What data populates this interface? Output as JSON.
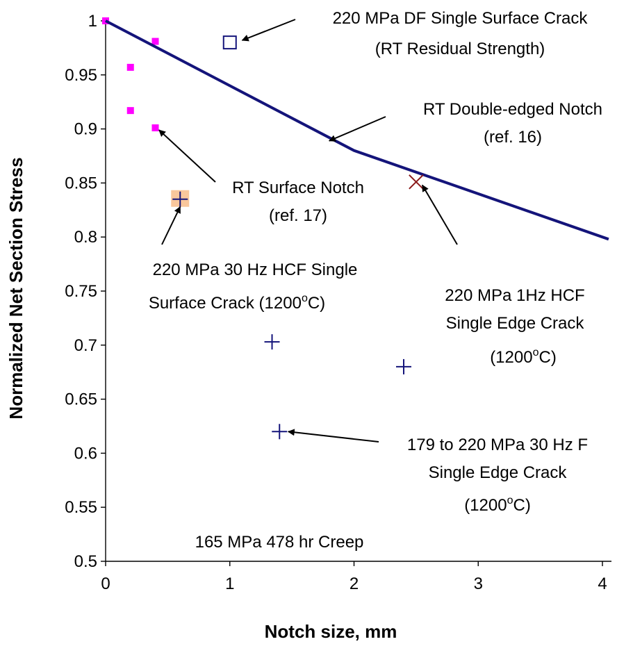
{
  "chart_data": {
    "type": "scatter",
    "xlabel": "Notch size, mm",
    "ylabel": "Normalized Net Section Stress",
    "xlim": [
      0,
      4.05
    ],
    "ylim": [
      0.5,
      1.0
    ],
    "x_ticks": [
      "0",
      "1",
      "2",
      "3",
      "4"
    ],
    "y_ticks": [
      "0.5",
      "0.55",
      "0.6",
      "0.65",
      "0.7",
      "0.75",
      "0.8",
      "0.85",
      "0.9",
      "0.95",
      "1"
    ],
    "grid": false,
    "legend": "none",
    "series": [
      {
        "marker": "filled-square",
        "color": "#ff00ff",
        "points": [
          [
            0,
            1.0
          ],
          [
            0.2,
            0.957
          ],
          [
            0.2,
            0.917
          ],
          [
            0.4,
            0.981
          ],
          [
            0.4,
            0.901
          ]
        ]
      },
      {
        "marker": "line",
        "color": "#14147a",
        "points": [
          [
            0,
            1.0
          ],
          [
            1,
            0.94
          ],
          [
            2,
            0.88
          ],
          [
            4.05,
            0.798
          ]
        ]
      },
      {
        "marker": "open-square",
        "color": "#14147a",
        "points": [
          [
            1.0,
            0.98
          ]
        ]
      },
      {
        "marker": "plus",
        "color": "#14147a",
        "points": [
          [
            0.6,
            0.835
          ],
          [
            1.34,
            0.703
          ],
          [
            1.4,
            0.62
          ],
          [
            2.4,
            0.68
          ]
        ]
      },
      {
        "marker": "cross",
        "color": "#8b1a1a",
        "points": [
          [
            2.5,
            0.851
          ]
        ]
      }
    ],
    "highlight_points": [
      [
        0.6,
        0.835
      ]
    ],
    "highlight_color": "#f9c79c",
    "annotations": [
      {
        "lines": [
          "220 MPa DF Single Surface Crack",
          "(RT Residual Strength)"
        ],
        "arrow_to": [
          1.1,
          0.982
        ]
      },
      {
        "lines": [
          "RT Double-edged Notch",
          "(ref. 16)"
        ],
        "arrow_to": [
          1.8,
          0.889
        ]
      },
      {
        "lines": [
          "RT Surface Notch",
          "(ref. 17)"
        ],
        "arrow_to": [
          0.43,
          0.899
        ]
      },
      {
        "lines": [
          "220 MPa 30 Hz HCF Single",
          "Surface Crack (1200°C)"
        ],
        "arrow_to": [
          0.6,
          0.828
        ]
      },
      {
        "lines": [
          "220 MPa 1Hz HCF",
          "Single Edge Crack",
          "(1200°C)"
        ],
        "arrow_to": [
          2.55,
          0.848
        ]
      },
      {
        "lines": [
          "179 to 220 MPa 30 Hz F",
          "Single Edge Crack",
          "(1200°C)"
        ],
        "arrow_to": [
          1.47,
          0.62
        ]
      },
      {
        "lines": [
          "165 MPa 478 hr Creep"
        ],
        "arrow_to": null
      }
    ]
  }
}
